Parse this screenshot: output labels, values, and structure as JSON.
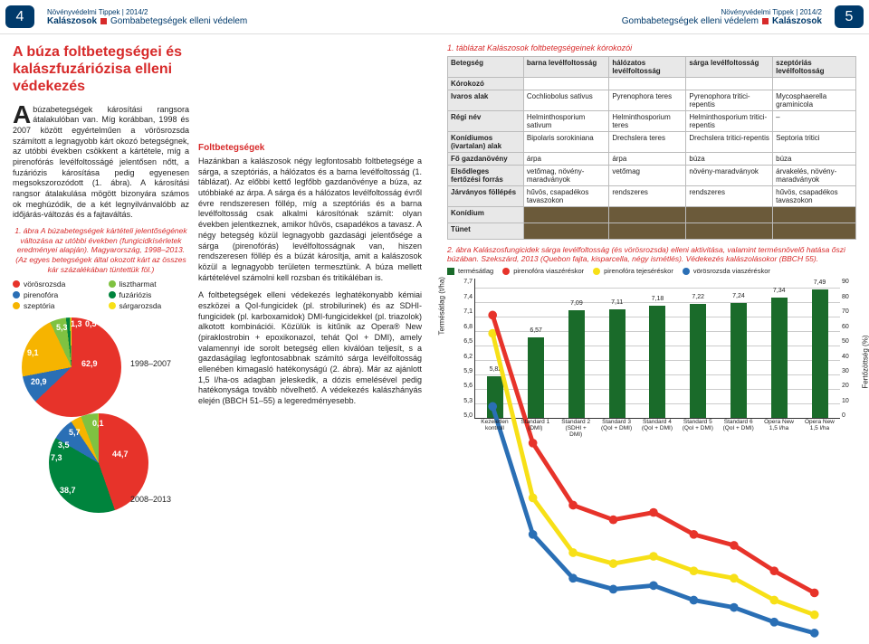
{
  "hdr": {
    "series": "Növényvédelmi Tippek | 2014/2",
    "left": {
      "num": "4",
      "cat": "Kalászosok",
      "topic": "Gombabetegségek elleni védelem"
    },
    "right": {
      "num": "5",
      "cat": "Kalászosok",
      "topic": "Gombabetegségek elleni védelem"
    }
  },
  "title": "A búza foltbetegségei és kalászfuzáriózisa elleni védekezés",
  "intro": "Abúzabetegségek károsítási rangsora átalakulóban van. Míg korábban, 1998 és 2007 között egyértelműen a vörösrozsda számított a legnagyobb kárt okozó betegségnek, az utóbbi években csökkent a kártétele, míg a pirenofórás levélfoltosságé jelentősen nőtt, a fuzáriózis károsítása pedig egyenesen megsokszorozódott (1. ábra). A károsítási rangsor átalakulása mögött bizonyára számos ok meghúzódik, de a két legnyilvánvalóbb az időjárás-változás és a fajtaváltás.",
  "fig1": {
    "caption": "1. ábra A búzabetegségek kártételi jelentőségének változása az utóbbi években (fungicidkísérletek eredményei alapján). Magyarország, 1998–2013. (Az egyes betegségek által okozott kárt az összes kár százalékában tüntettük föl.)",
    "legend": [
      {
        "label": "vörösrozsda",
        "color": "#e7332a"
      },
      {
        "label": "lisztharmat",
        "color": "#7fc241"
      },
      {
        "label": "pirenofóra",
        "color": "#2a6fb5"
      },
      {
        "label": "fuzáriózis",
        "color": "#00843d"
      },
      {
        "label": "szeptória",
        "color": "#f6b400"
      },
      {
        "label": "sárgarozsda",
        "color": "#f7e017"
      }
    ],
    "pie1": {
      "period": "1998–2007",
      "values": [
        62.9,
        9.1,
        20.9,
        5.3,
        1.3,
        0.5
      ],
      "colors": [
        "#e7332a",
        "#2a6fb5",
        "#f6b400",
        "#7fc241",
        "#00843d",
        "#f7e017"
      ],
      "labels": [
        "62,9",
        "9,1",
        "20,9",
        "5,3",
        "1,3",
        "0,5"
      ]
    },
    "pie2": {
      "period": "2008–2013",
      "values": [
        44.7,
        38.7,
        7.3,
        3.5,
        5.7,
        0.1
      ],
      "colors": [
        "#e7332a",
        "#00843d",
        "#2a6fb5",
        "#f6b400",
        "#7fc241",
        "#f7e017"
      ],
      "labels": [
        "44,7",
        "38,7",
        "7,3",
        "3,5",
        "5,7",
        "0,1"
      ]
    }
  },
  "subhead": "Foltbetegségek",
  "body1": "Hazánkban a kalászosok négy legfontosabb foltbetegsége a sárga, a szeptóriás, a hálózatos és a barna levélfoltosság (1. táblázat). Az előbbi kettő legfőbb gazdanövénye a búza, az utóbbiaké az árpa. A sárga és a hálózatos levélfoltosság évről évre rendszeresen föllép, míg a szeptóriás és a barna levélfoltosság csak alkalmi károsítónak számít: olyan években jelentkeznek, amikor hűvös, csapadékos a tavasz. A négy betegség közül legnagyobb gazdasági jelentősége a sárga (pirenofórás) levélfoltosságnak van, hiszen rendszeresen föllép és a búzát károsítja, amit a kalászosok közül a legnagyobb területen termesztünk. A búza mellett kártételével számolni kell rozsban és tritikáléban is.",
  "body2": "A foltbetegségek elleni védekezés leghatékonyabb kémiai eszközei a QoI-fungicidek (pl. strobilurinek) és az SDHI-fungicidek (pl. karboxamidok) DMI-fungicidekkel (pl. triazolok) alkotott kombinációi. Közülük is kitűnik az Opera® New (piraklostrobin + epoxikonazol, tehát QoI + DMI), amely valamennyi ide sorolt betegség ellen kiválóan teljesít, s a gazdaságilag legfontosabbnak számító sárga levélfoltosság ellenében kimagasló hatékonyságú (2. ábra). Már az ajánlott 1,5 l/ha-os adagban jeleskedik, a dózis emelésével pedig hatékonysága tovább növelhető. A védekezés kalászhányás elején (BBCH 51–55) a legeredményesebb.",
  "table1": {
    "caption": "1. táblázat Kalászosok foltbetegségeinek kórokozói",
    "headers": [
      "Betegség",
      "barna levélfoltosság",
      "hálózatos levélfoltosság",
      "sárga levélfoltosság",
      "szeptóriás levélfoltosság"
    ],
    "rows": [
      [
        "Kórokozó",
        "",
        "",
        "",
        ""
      ],
      [
        "Ivaros alak",
        "Cochliobolus sativus",
        "Pyrenophora teres",
        "Pyrenophora tritici-repentis",
        "Mycosphaerella graminicola"
      ],
      [
        "Régi név",
        "Helminthosporium sativum",
        "Helminthosporium teres",
        "Helminthosporium tritici-repentis",
        "–"
      ],
      [
        "Konídiumos (ivartalan) alak",
        "Bipolaris sorokiniana",
        "Drechslera teres",
        "Drechslera tritici-repentis",
        "Septoria tritici"
      ],
      [
        "Fő gazdanövény",
        "árpa",
        "árpa",
        "búza",
        "búza"
      ],
      [
        "Elsődleges fertőzési forrás",
        "vetőmag, növény-maradványok",
        "vetőmag",
        "növény-maradványok",
        "árvakelés, növény-maradványok"
      ],
      [
        "Járványos föllépés",
        "hűvös, csapadékos tavaszokon",
        "rendszeres",
        "rendszeres",
        "hűvös, csapadékos tavaszokon"
      ],
      [
        "Konídium",
        "img",
        "img",
        "img",
        "img"
      ],
      [
        "Tünet",
        "img",
        "img",
        "img",
        "img"
      ]
    ]
  },
  "fig2": {
    "caption": "2. ábra Kalászosfungicidek sárga levélfoltosság (és vörösrozsda) elleni aktivitása, valamint termésnövelő hatása őszi búzában. Szekszárd, 2013 (Quebon fajta, kisparcella, négy ismétlés). Védekezés kalászolásokor (BBCH 55).",
    "legend": [
      {
        "label": "termésátlag",
        "color": "#1a6b2a",
        "type": "bar"
      },
      {
        "label": "pirenofóra viaszéréskor",
        "color": "#e7332a",
        "type": "line"
      },
      {
        "label": "pirenofóra tejeséréskor",
        "color": "#f7e017",
        "type": "line"
      },
      {
        "label": "vörösrozsda viaszéréskor",
        "color": "#2a6fb5",
        "type": "line"
      }
    ],
    "ylabel": "Termésátlag (t/ha)",
    "ylabel2": "Fertőzöttség (%)",
    "yticks": [
      "5,0",
      "5,3",
      "5,6",
      "5,9",
      "6,2",
      "6,5",
      "6,8",
      "7,1",
      "7,4",
      "7,7"
    ],
    "yticks2": [
      "0",
      "10",
      "20",
      "30",
      "40",
      "50",
      "60",
      "70",
      "80",
      "90"
    ],
    "xcats": [
      "Kezeletlen kontroll",
      "Standard 1 (DMI)",
      "Standard 2 (SDHI + DMI)",
      "Standard 3 (QoI + DMI)",
      "Standard 4 (QoI + DMI)",
      "Standard 5 (QoI + DMI)",
      "Standard 6 (QoI + DMI)",
      "Opera New 1,5 l/ha",
      "Opera New 1,5 l/ha"
    ],
    "bars": [
      5.82,
      6.57,
      7.09,
      7.11,
      7.18,
      7.22,
      7.24,
      7.34,
      7.49
    ],
    "barlabels": [
      "5,82",
      "6,57",
      "7,09",
      "7,11",
      "7,18",
      "7,22",
      "7,24",
      "7,34",
      "7,49"
    ],
    "ylim": [
      5.0,
      7.7
    ]
  }
}
